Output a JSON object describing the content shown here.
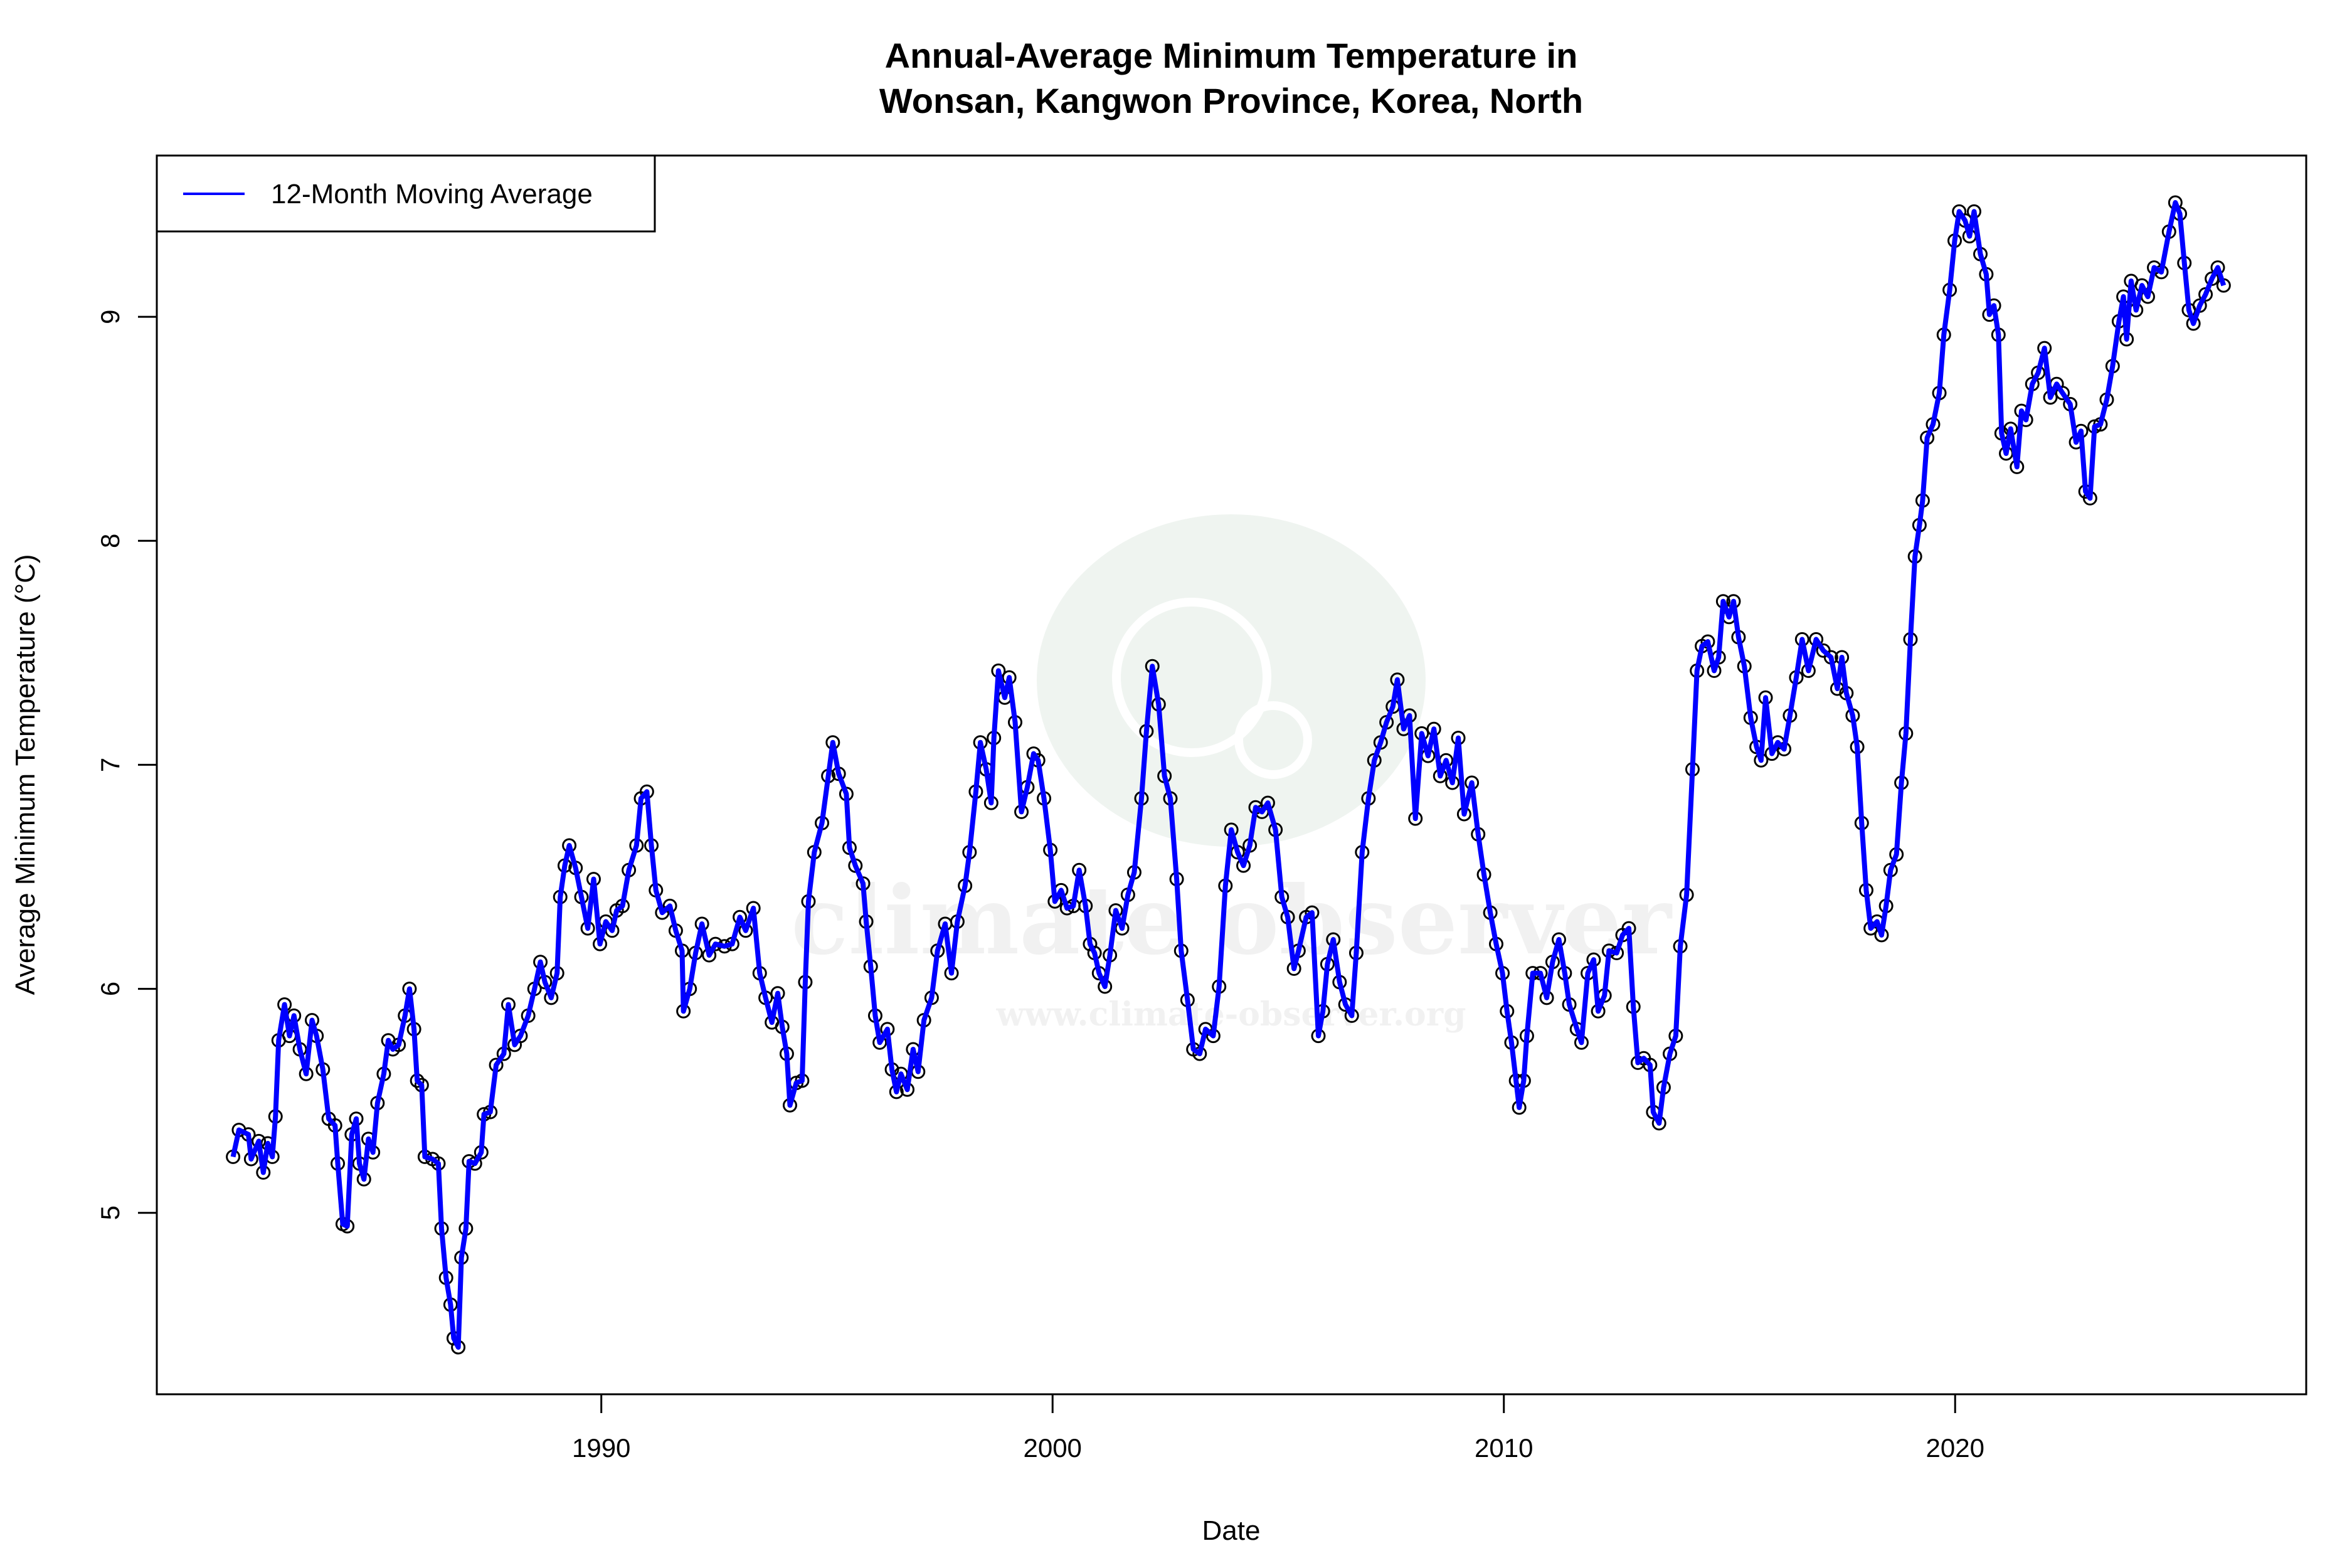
{
  "chart_data": {
    "type": "line",
    "title_lines": [
      "Annual-Average Minimum Temperature in",
      "Wonsan, Kangwon Province, Korea, North"
    ],
    "xlabel": "Date",
    "ylabel": "Average Minimum Temperature (°C)",
    "xlim": [
      1980.15,
      2027.78
    ],
    "ylim": [
      4.19,
      9.72
    ],
    "x_ticks": [
      1990,
      2000,
      2010,
      2020
    ],
    "y_ticks": [
      5,
      6,
      7,
      8,
      9
    ],
    "grid": false,
    "legend": {
      "placement": "top-left",
      "entries": [
        {
          "label": "12-Month Moving Average",
          "color": "#0000ff"
        }
      ]
    },
    "series": [
      {
        "name": "12-Month Moving Average",
        "color": "#0000ff",
        "marker": "open-circle",
        "marker_color": "#000000",
        "x": [
          1981.84,
          1981.97,
          1982.18,
          1982.24,
          1982.41,
          1982.51,
          1982.61,
          1982.71,
          1982.78,
          1982.85,
          1982.98,
          1983.09,
          1983.19,
          1983.32,
          1983.46,
          1983.59,
          1983.69,
          1983.83,
          1983.96,
          1984.1,
          1984.16,
          1984.27,
          1984.37,
          1984.47,
          1984.57,
          1984.64,
          1984.74,
          1984.84,
          1984.94,
          1985.04,
          1985.18,
          1985.28,
          1985.38,
          1985.51,
          1985.65,
          1985.75,
          1985.85,
          1985.92,
          1986.02,
          1986.09,
          1986.26,
          1986.39,
          1986.46,
          1986.56,
          1986.66,
          1986.73,
          1986.83,
          1986.9,
          1987.0,
          1987.07,
          1987.2,
          1987.34,
          1987.4,
          1987.54,
          1987.67,
          1987.84,
          1987.94,
          1988.08,
          1988.21,
          1988.38,
          1988.52,
          1988.65,
          1988.75,
          1988.89,
          1989.02,
          1989.09,
          1989.19,
          1989.29,
          1989.43,
          1989.56,
          1989.7,
          1989.83,
          1989.97,
          1990.1,
          1990.24,
          1990.34,
          1990.47,
          1990.61,
          1990.78,
          1990.88,
          1991.01,
          1991.11,
          1991.21,
          1991.35,
          1991.52,
          1991.65,
          1991.79,
          1991.82,
          1991.96,
          1992.09,
          1992.23,
          1992.39,
          1992.53,
          1992.73,
          1992.9,
          1993.07,
          1993.2,
          1993.37,
          1993.51,
          1993.64,
          1993.78,
          1993.91,
          1994.01,
          1994.11,
          1994.18,
          1994.32,
          1994.45,
          1994.52,
          1994.59,
          1994.72,
          1994.89,
          1995.03,
          1995.13,
          1995.26,
          1995.43,
          1995.5,
          1995.63,
          1995.8,
          1995.87,
          1995.97,
          1996.07,
          1996.17,
          1996.34,
          1996.44,
          1996.54,
          1996.64,
          1996.78,
          1996.91,
          1997.02,
          1997.15,
          1997.32,
          1997.45,
          1997.62,
          1997.76,
          1997.89,
          1998.06,
          1998.16,
          1998.3,
          1998.4,
          1998.53,
          1998.64,
          1998.7,
          1998.8,
          1998.94,
          1999.04,
          1999.17,
          1999.31,
          1999.44,
          1999.58,
          1999.68,
          1999.81,
          1999.95,
          2000.05,
          2000.19,
          2000.32,
          2000.46,
          2000.59,
          2000.73,
          2000.83,
          2000.93,
          2001.03,
          2001.16,
          2001.27,
          2001.4,
          2001.54,
          2001.67,
          2001.81,
          2001.97,
          2002.08,
          2002.21,
          2002.35,
          2002.48,
          2002.61,
          2002.75,
          2002.85,
          2002.99,
          2003.12,
          2003.26,
          2003.39,
          2003.56,
          2003.69,
          2003.83,
          2003.96,
          2004.1,
          2004.23,
          2004.37,
          2004.5,
          2004.64,
          2004.77,
          2004.94,
          2005.08,
          2005.21,
          2005.35,
          2005.45,
          2005.62,
          2005.75,
          2005.89,
          2005.99,
          2006.09,
          2006.22,
          2006.36,
          2006.49,
          2006.63,
          2006.73,
          2006.86,
          2007.0,
          2007.13,
          2007.27,
          2007.4,
          2007.54,
          2007.64,
          2007.78,
          2007.91,
          2008.04,
          2008.18,
          2008.32,
          2008.45,
          2008.59,
          2008.72,
          2008.86,
          2008.99,
          2009.12,
          2009.29,
          2009.43,
          2009.56,
          2009.7,
          2009.83,
          2009.97,
          2010.07,
          2010.17,
          2010.27,
          2010.34,
          2010.44,
          2010.51,
          2010.64,
          2010.81,
          2010.95,
          2011.08,
          2011.22,
          2011.35,
          2011.45,
          2011.62,
          2011.72,
          2011.86,
          2011.99,
          2012.09,
          2012.23,
          2012.33,
          2012.5,
          2012.63,
          2012.77,
          2012.87,
          2012.97,
          2013.1,
          2013.24,
          2013.31,
          2013.44,
          2013.54,
          2013.68,
          2013.81,
          2013.91,
          2014.05,
          2014.18,
          2014.28,
          2014.39,
          2014.52,
          2014.66,
          2014.76,
          2014.86,
          2014.99,
          2015.09,
          2015.2,
          2015.33,
          2015.47,
          2015.6,
          2015.7,
          2015.8,
          2015.94,
          2016.07,
          2016.21,
          2016.34,
          2016.48,
          2016.61,
          2016.75,
          2016.92,
          2017.08,
          2017.25,
          2017.39,
          2017.49,
          2017.59,
          2017.73,
          2017.83,
          2017.93,
          2018.03,
          2018.13,
          2018.27,
          2018.37,
          2018.47,
          2018.57,
          2018.7,
          2018.81,
          2018.91,
          2019.01,
          2019.11,
          2019.21,
          2019.28,
          2019.38,
          2019.51,
          2019.65,
          2019.75,
          2019.88,
          2019.99,
          2020.09,
          2020.22,
          2020.32,
          2020.42,
          2020.56,
          2020.69,
          2020.76,
          2020.86,
          2020.96,
          2021.03,
          2021.13,
          2021.23,
          2021.37,
          2021.47,
          2021.57,
          2021.71,
          2021.84,
          2021.98,
          2022.11,
          2022.25,
          2022.38,
          2022.55,
          2022.68,
          2022.79,
          2022.89,
          2022.99,
          2023.09,
          2023.22,
          2023.36,
          2023.49,
          2023.63,
          2023.73,
          2023.8,
          2023.9,
          2024.01,
          2024.14,
          2024.27,
          2024.41,
          2024.57,
          2024.74,
          2024.88,
          2024.98,
          2025.08,
          2025.18,
          2025.28,
          2025.42,
          2025.55,
          2025.69,
          2025.82,
          2025.95
        ],
        "y": [
          5.25,
          5.37,
          5.35,
          5.24,
          5.32,
          5.18,
          5.31,
          5.25,
          5.43,
          5.77,
          5.93,
          5.79,
          5.88,
          5.73,
          5.62,
          5.86,
          5.79,
          5.64,
          5.42,
          5.39,
          5.22,
          4.95,
          4.94,
          5.35,
          5.42,
          5.22,
          5.15,
          5.33,
          5.27,
          5.49,
          5.62,
          5.77,
          5.73,
          5.75,
          5.88,
          6.0,
          5.82,
          5.59,
          5.57,
          5.25,
          5.24,
          5.22,
          4.93,
          4.71,
          4.59,
          4.44,
          4.4,
          4.8,
          4.93,
          5.23,
          5.22,
          5.27,
          5.44,
          5.45,
          5.66,
          5.71,
          5.93,
          5.75,
          5.79,
          5.88,
          6.0,
          6.12,
          6.03,
          5.96,
          6.07,
          6.41,
          6.55,
          6.64,
          6.54,
          6.41,
          6.27,
          6.49,
          6.2,
          6.3,
          6.26,
          6.35,
          6.37,
          6.53,
          6.64,
          6.85,
          6.88,
          6.64,
          6.44,
          6.34,
          6.37,
          6.26,
          6.17,
          5.9,
          6.0,
          6.16,
          6.29,
          6.15,
          6.2,
          6.19,
          6.2,
          6.32,
          6.26,
          6.36,
          6.07,
          5.96,
          5.85,
          5.98,
          5.83,
          5.71,
          5.48,
          5.58,
          5.59,
          6.03,
          6.39,
          6.61,
          6.74,
          6.95,
          7.1,
          6.96,
          6.87,
          6.63,
          6.55,
          6.47,
          6.3,
          6.1,
          5.88,
          5.76,
          5.82,
          5.64,
          5.54,
          5.62,
          5.55,
          5.73,
          5.63,
          5.86,
          5.96,
          6.17,
          6.29,
          6.07,
          6.3,
          6.46,
          6.61,
          6.88,
          7.1,
          6.98,
          6.83,
          7.12,
          7.42,
          7.3,
          7.39,
          7.19,
          6.79,
          6.9,
          7.05,
          7.02,
          6.85,
          6.62,
          6.39,
          6.44,
          6.36,
          6.37,
          6.53,
          6.37,
          6.2,
          6.16,
          6.07,
          6.01,
          6.15,
          6.35,
          6.27,
          6.42,
          6.52,
          6.85,
          7.15,
          7.44,
          7.27,
          6.95,
          6.85,
          6.49,
          6.17,
          5.95,
          5.73,
          5.71,
          5.82,
          5.79,
          6.01,
          6.46,
          6.71,
          6.61,
          6.55,
          6.64,
          6.81,
          6.79,
          6.83,
          6.71,
          6.41,
          6.32,
          6.09,
          6.17,
          6.32,
          6.34,
          5.79,
          5.9,
          6.11,
          6.22,
          6.03,
          5.93,
          5.88,
          6.16,
          6.61,
          6.85,
          7.02,
          7.1,
          7.19,
          7.26,
          7.38,
          7.16,
          7.22,
          6.76,
          7.14,
          7.04,
          7.16,
          6.95,
          7.02,
          6.92,
          7.12,
          6.78,
          6.92,
          6.69,
          6.51,
          6.34,
          6.2,
          6.07,
          5.9,
          5.76,
          5.59,
          5.47,
          5.59,
          5.79,
          6.07,
          6.07,
          5.96,
          6.12,
          6.22,
          6.07,
          5.93,
          5.82,
          5.76,
          6.07,
          6.13,
          5.9,
          5.97,
          6.17,
          6.16,
          6.24,
          6.27,
          5.92,
          5.67,
          5.69,
          5.66,
          5.45,
          5.4,
          5.56,
          5.71,
          5.79,
          6.19,
          6.42,
          6.98,
          7.42,
          7.53,
          7.55,
          7.42,
          7.48,
          7.73,
          7.66,
          7.73,
          7.57,
          7.44,
          7.21,
          7.08,
          7.02,
          7.3,
          7.05,
          7.1,
          7.07,
          7.22,
          7.39,
          7.56,
          7.42,
          7.56,
          7.51,
          7.48,
          7.34,
          7.48,
          7.32,
          7.22,
          7.08,
          6.74,
          6.44,
          6.27,
          6.3,
          6.24,
          6.37,
          6.53,
          6.6,
          6.92,
          7.14,
          7.56,
          7.93,
          8.07,
          8.18,
          8.46,
          8.52,
          8.66,
          8.92,
          9.12,
          9.34,
          9.47,
          9.43,
          9.36,
          9.47,
          9.28,
          9.19,
          9.01,
          9.05,
          8.92,
          8.48,
          8.39,
          8.5,
          8.33,
          8.58,
          8.54,
          8.7,
          8.75,
          8.86,
          8.64,
          8.7,
          8.66,
          8.61,
          8.44,
          8.49,
          8.22,
          8.19,
          8.51,
          8.52,
          8.63,
          8.78,
          8.98,
          9.09,
          8.9,
          9.16,
          9.03,
          9.14,
          9.09,
          9.22,
          9.2,
          9.38,
          9.51,
          9.46,
          9.24,
          9.03,
          8.97,
          9.05,
          9.1,
          9.17,
          9.22,
          9.14
        ]
      }
    ]
  },
  "watermark": {
    "name": "climate observer",
    "url": "www.climate-observer.org",
    "color": "#e6e6e6"
  }
}
